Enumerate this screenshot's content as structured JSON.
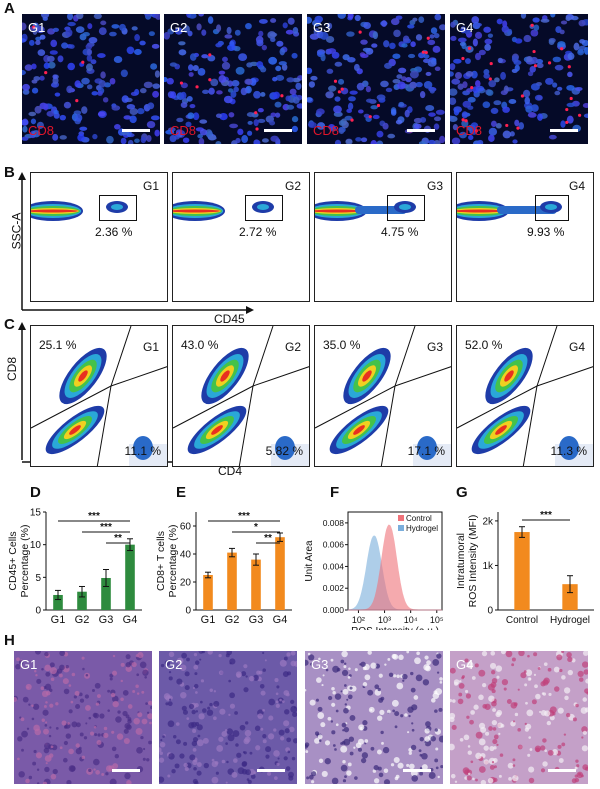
{
  "panel_labels": {
    "a": "A",
    "b": "B",
    "c": "C",
    "d": "D",
    "e": "E",
    "f": "F",
    "g": "G",
    "h": "H"
  },
  "groups": [
    "G1",
    "G2",
    "G3",
    "G4"
  ],
  "panel_a": {
    "stain_label": "CD8"
  },
  "panel_b": {
    "x_axis": "CD45",
    "y_axis": "SSC-A",
    "gates": [
      "2.36 %",
      "2.72 %",
      "4.75 %",
      "9.93 %"
    ]
  },
  "panel_c": {
    "x_axis": "CD4",
    "y_axis": "CD8",
    "cd8_pct": [
      "25.1 %",
      "43.0 %",
      "35.0 %",
      "52.0 %"
    ],
    "cd4_pct": [
      "11.1 %",
      "5.82 %",
      "17.1 %",
      "11.3 %"
    ]
  },
  "colors": {
    "green": "#2e8b3e",
    "orange": "#f28a1e",
    "control": "#f0727a",
    "hydrogel": "#7aaedc"
  },
  "chart_data": [
    {
      "id": "D",
      "type": "bar",
      "categories": [
        "G1",
        "G2",
        "G3",
        "G4"
      ],
      "values": [
        2.3,
        2.8,
        4.9,
        10.0
      ],
      "errors": [
        0.7,
        0.8,
        1.3,
        0.9
      ],
      "ylabel": "CD45+ Cells Percentage (%)",
      "ylabel_lines": [
        "CD45+ Cells",
        "Percentage (%)"
      ],
      "ylim": [
        0,
        15
      ],
      "yticks": [
        "0",
        "5",
        "10",
        "15"
      ],
      "significance": [
        "***",
        "***",
        "**"
      ],
      "color": "#2e8b3e"
    },
    {
      "id": "E",
      "type": "bar",
      "categories": [
        "G1",
        "G2",
        "G3",
        "G4"
      ],
      "values": [
        25,
        41,
        36,
        52
      ],
      "errors": [
        2,
        3,
        4,
        3
      ],
      "ylabel": "CD8+ T cells Percentage (%)",
      "ylabel_lines": [
        "CD8+ T cells",
        "Percentage (%)"
      ],
      "ylim": [
        0,
        70
      ],
      "yticks": [
        "0",
        "20",
        "40",
        "60"
      ],
      "significance": [
        "***",
        "*",
        "**"
      ],
      "color": "#f28a1e"
    },
    {
      "id": "F",
      "type": "area",
      "xlabel": "ROS Intensity (a.u.)",
      "ylabel": "Unit Area",
      "xscale": "log",
      "xticks": [
        "10²",
        "10³",
        "10⁴",
        "10⁵"
      ],
      "ylim": [
        0,
        0.009
      ],
      "yticks": [
        "0.000",
        "0.002",
        "0.004",
        "0.006",
        "0.008"
      ],
      "series": [
        {
          "name": "Control",
          "peak_x": 1500,
          "peak_y": 0.0078,
          "color": "#f0727a"
        },
        {
          "name": "Hydrogel",
          "peak_x": 400,
          "peak_y": 0.0068,
          "color": "#7aaedc"
        }
      ],
      "legend": "top-right"
    },
    {
      "id": "G",
      "type": "bar",
      "categories": [
        "Control",
        "Hydrogel"
      ],
      "values": [
        1750,
        580
      ],
      "errors": [
        120,
        190
      ],
      "ylabel": "Intratumoral ROS Intensity (MFI)",
      "ylabel_lines": [
        "Intratumoral",
        "ROS Intensity (MFI)"
      ],
      "ylim": [
        0,
        2200
      ],
      "yticks": [
        "0",
        "1k",
        "2k"
      ],
      "significance": [
        "***"
      ],
      "color": "#f28a1e"
    }
  ]
}
